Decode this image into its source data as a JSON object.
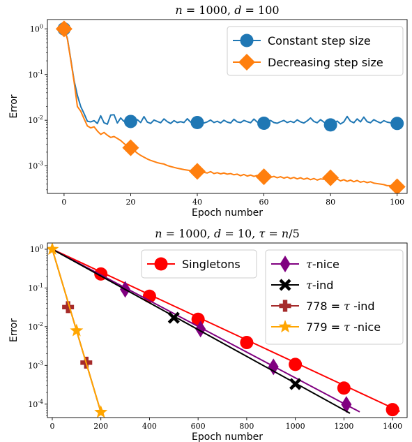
{
  "chart_data": [
    {
      "type": "line",
      "title": "n = 1000, d = 100",
      "xlabel": "Epoch number",
      "ylabel": "Error",
      "yscale": "log",
      "xlim": [
        -5,
        103
      ],
      "ylim": [
        0.00025,
        1.6
      ],
      "xticks": [
        0,
        20,
        40,
        60,
        80,
        100
      ],
      "yticks": [
        {
          "value": 1,
          "label": "10^0"
        },
        {
          "value": 0.1,
          "label": "10^-1"
        },
        {
          "value": 0.01,
          "label": "10^-2"
        },
        {
          "value": 0.001,
          "label": "10^-3"
        }
      ],
      "legend_position": "top-right",
      "series": [
        {
          "name": "Constant step size",
          "color": "#1f77b4",
          "marker": "circle",
          "line": [
            [
              0,
              1.0
            ],
            [
              1,
              0.62
            ],
            [
              2,
              0.22
            ],
            [
              3,
              0.075
            ],
            [
              4,
              0.035
            ],
            [
              5,
              0.02
            ],
            [
              6,
              0.014
            ],
            [
              7,
              0.0095
            ],
            [
              8,
              0.0092
            ],
            [
              9,
              0.0098
            ],
            [
              10,
              0.0085
            ],
            [
              11,
              0.0125
            ],
            [
              12,
              0.0088
            ],
            [
              13,
              0.0082
            ],
            [
              14,
              0.013
            ],
            [
              15,
              0.0132
            ],
            [
              16,
              0.0087
            ],
            [
              17,
              0.0112
            ],
            [
              18,
              0.0094
            ],
            [
              19,
              0.0102
            ],
            [
              20,
              0.0094
            ],
            [
              21,
              0.0086
            ],
            [
              22,
              0.0103
            ],
            [
              23,
              0.0089
            ],
            [
              24,
              0.012
            ],
            [
              25,
              0.0091
            ],
            [
              26,
              0.0085
            ],
            [
              27,
              0.0101
            ],
            [
              28,
              0.0094
            ],
            [
              29,
              0.0088
            ],
            [
              30,
              0.0107
            ],
            [
              31,
              0.0093
            ],
            [
              32,
              0.0085
            ],
            [
              33,
              0.0098
            ],
            [
              34,
              0.0089
            ],
            [
              35,
              0.0093
            ],
            [
              36,
              0.0089
            ],
            [
              37,
              0.0108
            ],
            [
              38,
              0.0091
            ],
            [
              39,
              0.0089
            ],
            [
              40,
              0.0089
            ],
            [
              41,
              0.0105
            ],
            [
              42,
              0.0087
            ],
            [
              43,
              0.0092
            ],
            [
              44,
              0.0101
            ],
            [
              45,
              0.0089
            ],
            [
              46,
              0.0095
            ],
            [
              47,
              0.0087
            ],
            [
              48,
              0.01
            ],
            [
              49,
              0.0091
            ],
            [
              50,
              0.0087
            ],
            [
              51,
              0.0105
            ],
            [
              52,
              0.0092
            ],
            [
              53,
              0.0089
            ],
            [
              54,
              0.0099
            ],
            [
              55,
              0.0093
            ],
            [
              56,
              0.0088
            ],
            [
              57,
              0.0106
            ],
            [
              58,
              0.0091
            ],
            [
              59,
              0.0089
            ],
            [
              60,
              0.0086
            ],
            [
              61,
              0.0093
            ],
            [
              62,
              0.0099
            ],
            [
              63,
              0.0089
            ],
            [
              64,
              0.0086
            ],
            [
              65,
              0.0093
            ],
            [
              66,
              0.0099
            ],
            [
              67,
              0.0089
            ],
            [
              68,
              0.0095
            ],
            [
              69,
              0.0089
            ],
            [
              70,
              0.0102
            ],
            [
              71,
              0.0092
            ],
            [
              72,
              0.0087
            ],
            [
              73,
              0.0097
            ],
            [
              74,
              0.0112
            ],
            [
              75,
              0.0094
            ],
            [
              76,
              0.0088
            ],
            [
              77,
              0.0103
            ],
            [
              78,
              0.0091
            ],
            [
              79,
              0.0085
            ],
            [
              80,
              0.0079
            ],
            [
              81,
              0.0088
            ],
            [
              82,
              0.0096
            ],
            [
              83,
              0.0083
            ],
            [
              84,
              0.0092
            ],
            [
              85,
              0.0121
            ],
            [
              86,
              0.0095
            ],
            [
              87,
              0.0088
            ],
            [
              88,
              0.0107
            ],
            [
              89,
              0.0092
            ],
            [
              90,
              0.0117
            ],
            [
              91,
              0.0093
            ],
            [
              92,
              0.0088
            ],
            [
              93,
              0.0103
            ],
            [
              94,
              0.0094
            ],
            [
              95,
              0.0087
            ],
            [
              96,
              0.0098
            ],
            [
              97,
              0.0091
            ],
            [
              98,
              0.0088
            ],
            [
              99,
              0.0086
            ],
            [
              100,
              0.0085
            ]
          ],
          "markers": [
            [
              0,
              1.0
            ],
            [
              20,
              0.0094
            ],
            [
              40,
              0.0089
            ],
            [
              60,
              0.0086
            ],
            [
              80,
              0.0079
            ],
            [
              100,
              0.0085
            ]
          ]
        },
        {
          "name": "Decreasing step size",
          "color": "#ff7f0e",
          "marker": "diamond",
          "line": [
            [
              0,
              1.0
            ],
            [
              1,
              0.6
            ],
            [
              2,
              0.21
            ],
            [
              3,
              0.07
            ],
            [
              4,
              0.02
            ],
            [
              5,
              0.0158
            ],
            [
              6,
              0.0108
            ],
            [
              7,
              0.0075
            ],
            [
              8,
              0.0068
            ],
            [
              9,
              0.0072
            ],
            [
              10,
              0.0058
            ],
            [
              11,
              0.0049
            ],
            [
              12,
              0.0054
            ],
            [
              13,
              0.0047
            ],
            [
              14,
              0.0042
            ],
            [
              15,
              0.0044
            ],
            [
              16,
              0.004
            ],
            [
              17,
              0.0036
            ],
            [
              18,
              0.0031
            ],
            [
              19,
              0.0027
            ],
            [
              20,
              0.0025
            ],
            [
              21,
              0.0022
            ],
            [
              22,
              0.0019
            ],
            [
              23,
              0.0017
            ],
            [
              24,
              0.00155
            ],
            [
              25,
              0.00142
            ],
            [
              26,
              0.00132
            ],
            [
              27,
              0.00125
            ],
            [
              28,
              0.00118
            ],
            [
              29,
              0.00113
            ],
            [
              30,
              0.0011
            ],
            [
              31,
              0.00102
            ],
            [
              32,
              0.00097
            ],
            [
              33,
              0.00093
            ],
            [
              34,
              0.00089
            ],
            [
              35,
              0.00086
            ],
            [
              36,
              0.00083
            ],
            [
              37,
              0.00081
            ],
            [
              38,
              0.00079
            ],
            [
              39,
              0.00077
            ],
            [
              40,
              0.00076
            ],
            [
              41,
              0.00073
            ],
            [
              42,
              0.00072
            ],
            [
              43,
              0.0007
            ],
            [
              44,
              0.00075
            ],
            [
              45,
              0.00068
            ],
            [
              46,
              0.00071
            ],
            [
              47,
              0.00067
            ],
            [
              48,
              0.0007
            ],
            [
              49,
              0.00066
            ],
            [
              50,
              0.00068
            ],
            [
              51,
              0.00064
            ],
            [
              52,
              0.00066
            ],
            [
              53,
              0.00061
            ],
            [
              54,
              0.00065
            ],
            [
              55,
              0.0006
            ],
            [
              56,
              0.00063
            ],
            [
              57,
              0.00059
            ],
            [
              58,
              0.00062
            ],
            [
              59,
              0.00061
            ],
            [
              60,
              0.00058
            ],
            [
              61,
              0.0006
            ],
            [
              62,
              0.00056
            ],
            [
              63,
              0.00059
            ],
            [
              64,
              0.00055
            ],
            [
              65,
              0.00058
            ],
            [
              66,
              0.00054
            ],
            [
              67,
              0.00057
            ],
            [
              68,
              0.00053
            ],
            [
              69,
              0.00056
            ],
            [
              70,
              0.00052
            ],
            [
              71,
              0.00055
            ],
            [
              72,
              0.00051
            ],
            [
              73,
              0.00054
            ],
            [
              74,
              0.0005
            ],
            [
              75,
              0.00053
            ],
            [
              76,
              0.00049
            ],
            [
              77,
              0.00052
            ],
            [
              78,
              0.00051
            ],
            [
              79,
              0.00057
            ],
            [
              80,
              0.00055
            ],
            [
              81,
              0.00049
            ],
            [
              82,
              0.00052
            ],
            [
              83,
              0.00047
            ],
            [
              84,
              0.0005
            ],
            [
              85,
              0.00046
            ],
            [
              86,
              0.00049
            ],
            [
              87,
              0.00045
            ],
            [
              88,
              0.00048
            ],
            [
              89,
              0.00044
            ],
            [
              90,
              0.00046
            ],
            [
              91,
              0.00043
            ],
            [
              92,
              0.00045
            ],
            [
              93,
              0.00042
            ],
            [
              94,
              0.00041
            ],
            [
              95,
              0.0004
            ],
            [
              96,
              0.00039
            ],
            [
              97,
              0.00037
            ],
            [
              98,
              0.00037
            ],
            [
              99,
              0.00036
            ],
            [
              100,
              0.00035
            ]
          ],
          "markers": [
            [
              0,
              1.0
            ],
            [
              20,
              0.0025
            ],
            [
              40,
              0.00076
            ],
            [
              60,
              0.00058
            ],
            [
              80,
              0.00055
            ],
            [
              100,
              0.00035
            ]
          ]
        }
      ]
    },
    {
      "type": "line",
      "title": "n = 1000, d = 10, τ = n/5",
      "xlabel": "Epoch number",
      "ylabel": "Error",
      "yscale": "log",
      "xlim": [
        -20,
        1460
      ],
      "ylim": [
        4.5e-05,
        1.45
      ],
      "xticks": [
        0,
        200,
        400,
        600,
        800,
        1000,
        1200,
        1400
      ],
      "yticks": [
        {
          "value": 1,
          "label": "10^0"
        },
        {
          "value": 0.1,
          "label": "10^-1"
        },
        {
          "value": 0.01,
          "label": "10^-2"
        },
        {
          "value": 0.001,
          "label": "10^-3"
        },
        {
          "value": 0.0001,
          "label": "10^-4"
        }
      ],
      "legend_position": "top",
      "series": [
        {
          "name": "Singletons",
          "color": "#ff0000",
          "marker": "circle",
          "line": [
            [
              0,
              1.0
            ],
            [
              1430,
              6.5e-05
            ]
          ],
          "markers": [
            [
              200,
              0.23
            ],
            [
              400,
              0.0612
            ],
            [
              600,
              0.0155
            ],
            [
              800,
              0.0039
            ],
            [
              1000,
              0.00106
            ],
            [
              1200,
              0.00026
            ],
            [
              1400,
              7.2e-05
            ]
          ]
        },
        {
          "name": "τ-nice",
          "color": "#800080",
          "marker": "thin_diamond",
          "line": [
            [
              0,
              1.0
            ],
            [
              1265,
              6.3e-05
            ]
          ],
          "markers": [
            [
              300,
              0.092
            ],
            [
              610,
              0.0087
            ],
            [
              910,
              0.00092
            ],
            [
              1210,
              9.8e-05
            ]
          ]
        },
        {
          "name": "τ-ind",
          "color": "#000000",
          "marker": "x",
          "line": [
            [
              0,
              1.0
            ],
            [
              1225,
              5.8e-05
            ]
          ],
          "markers": [
            [
              500,
              0.017
            ],
            [
              1000,
              0.00033
            ]
          ]
        },
        {
          "name": "778 = τ -ind",
          "color": "#a52a2a",
          "marker": "plus",
          "line": [
            [
              0,
              1.0
            ],
            [
              200,
              6.2e-05
            ]
          ],
          "markers": [
            [
              65,
              0.032
            ],
            [
              140,
              0.00118
            ]
          ]
        },
        {
          "name": "779 = τ -nice",
          "color": "#ffa500",
          "marker": "star",
          "line": [
            [
              0,
              1.0
            ],
            [
              200,
              6.2e-05
            ]
          ],
          "markers": [
            [
              0,
              1.0
            ],
            [
              100,
              0.0079
            ],
            [
              200,
              6.2e-05
            ]
          ]
        }
      ]
    }
  ]
}
